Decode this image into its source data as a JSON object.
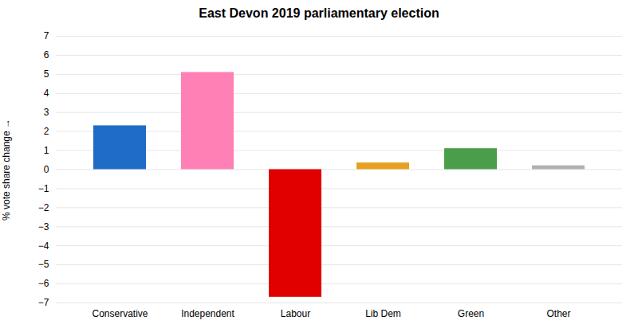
{
  "chart_data": {
    "type": "bar",
    "title": "East Devon 2019 parliamentary election",
    "categories": [
      "Conservative",
      "Independent",
      "Labour",
      "Lib Dem",
      "Green",
      "Other"
    ],
    "values": [
      2.3,
      5.1,
      -6.7,
      0.35,
      1.1,
      0.2
    ],
    "colors": [
      "#1f6cc7",
      "#ff80b4",
      "#e00000",
      "#e8a020",
      "#4a9e4a",
      "#b0b0b0"
    ],
    "ylabel": "% vote share change",
    "ylim": [
      -7,
      7
    ],
    "yticks": [
      -7,
      -6,
      -5,
      -4,
      -3,
      -2,
      -1,
      0,
      1,
      2,
      3,
      4,
      5,
      6,
      7
    ],
    "grid": true
  }
}
